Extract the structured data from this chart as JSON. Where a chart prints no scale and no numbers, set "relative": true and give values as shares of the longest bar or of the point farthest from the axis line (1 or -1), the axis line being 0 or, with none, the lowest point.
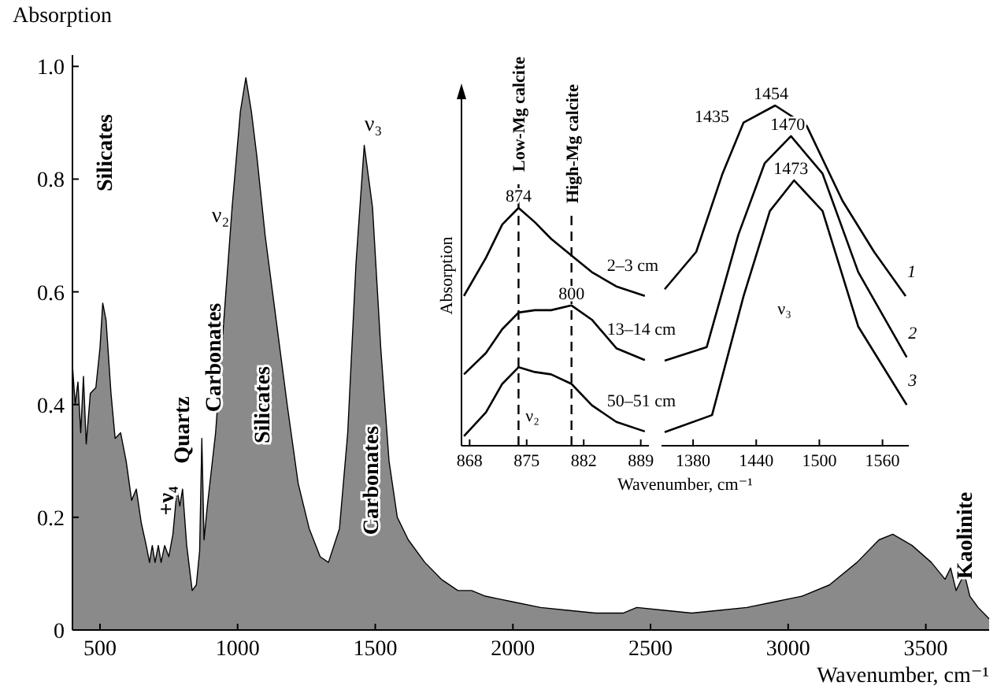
{
  "chart_data": [
    {
      "type": "area",
      "ylabel": "Absorption",
      "xlabel": "Wavenumber, cm⁻¹",
      "xlim": [
        400,
        3730
      ],
      "ylim": [
        0,
        1.02
      ],
      "xticks": [
        500,
        1000,
        1500,
        2000,
        2500,
        3000,
        3500
      ],
      "yticks": [
        0,
        0.2,
        0.4,
        0.6,
        0.8,
        {
          "value": 1,
          "label": "1.0"
        }
      ],
      "x": [
        400,
        410,
        420,
        430,
        440,
        450,
        465,
        485,
        500,
        510,
        522,
        540,
        555,
        575,
        595,
        615,
        632,
        650,
        668,
        680,
        690,
        700,
        712,
        722,
        735,
        750,
        765,
        780,
        790,
        800,
        815,
        835,
        850,
        862,
        870,
        878,
        890,
        920,
        950,
        980,
        1010,
        1030,
        1050,
        1070,
        1100,
        1140,
        1180,
        1220,
        1260,
        1300,
        1330,
        1370,
        1400,
        1430,
        1460,
        1490,
        1520,
        1550,
        1580,
        1620,
        1680,
        1740,
        1800,
        1850,
        1900,
        1950,
        2000,
        2100,
        2200,
        2300,
        2400,
        2450,
        2550,
        2650,
        2750,
        2850,
        2950,
        3050,
        3150,
        3250,
        3330,
        3380,
        3450,
        3520,
        3570,
        3590,
        3610,
        3640,
        3660,
        3690,
        3730
      ],
      "series": [
        {
          "color": "#8a8a8a",
          "values": [
            0.47,
            0.4,
            0.44,
            0.35,
            0.45,
            0.33,
            0.42,
            0.43,
            0.5,
            0.58,
            0.55,
            0.42,
            0.34,
            0.35,
            0.3,
            0.23,
            0.25,
            0.19,
            0.15,
            0.12,
            0.15,
            0.12,
            0.15,
            0.12,
            0.15,
            0.13,
            0.17,
            0.25,
            0.22,
            0.25,
            0.15,
            0.07,
            0.08,
            0.14,
            0.34,
            0.16,
            0.22,
            0.35,
            0.55,
            0.75,
            0.92,
            0.98,
            0.92,
            0.84,
            0.7,
            0.55,
            0.4,
            0.26,
            0.18,
            0.13,
            0.12,
            0.18,
            0.35,
            0.65,
            0.86,
            0.75,
            0.5,
            0.3,
            0.2,
            0.16,
            0.12,
            0.09,
            0.07,
            0.07,
            0.06,
            0.055,
            0.05,
            0.04,
            0.035,
            0.03,
            0.03,
            0.04,
            0.035,
            0.03,
            0.035,
            0.04,
            0.05,
            0.06,
            0.08,
            0.12,
            0.16,
            0.17,
            0.15,
            0.12,
            0.09,
            0.11,
            0.07,
            0.1,
            0.06,
            0.04,
            0.02
          ]
        }
      ],
      "annotations": [
        "Silicates",
        "+ν₄",
        "Quartz",
        "Carbonates",
        "ν₂",
        "Silicates",
        "ν₃",
        "Carbonates",
        "Kaolinite"
      ]
    },
    {
      "type": "line",
      "relative": true,
      "ylabel": "Absorption",
      "xlabel": "Wavenumber, cm⁻¹",
      "xlim": [
        867,
        890
      ],
      "xticks": [
        868,
        875,
        882,
        889
      ],
      "line_style": "solid",
      "x": [
        867.3,
        870,
        872,
        874,
        876,
        878,
        880.5,
        883,
        886,
        889.5
      ],
      "series": [
        {
          "name": "2–3 cm",
          "color": "#000000",
          "values": [
            0.63,
            0.79,
            0.93,
            1.0,
            0.94,
            0.87,
            0.8,
            0.73,
            0.67,
            0.63
          ]
        },
        {
          "name": "13–14 cm",
          "color": "#000000",
          "values": [
            0.3,
            0.39,
            0.49,
            0.56,
            0.57,
            0.57,
            0.59,
            0.53,
            0.41,
            0.36
          ]
        },
        {
          "name": "50–51 cm",
          "color": "#000000",
          "values": [
            0.04,
            0.14,
            0.26,
            0.33,
            0.31,
            0.3,
            0.26,
            0.17,
            0.1,
            0.06
          ]
        }
      ],
      "ref_lines": [
        {
          "axis": "x",
          "value": 874,
          "label": "Low-Mg calcite",
          "line_style": "dashed"
        },
        {
          "axis": "x",
          "value": 880.5,
          "label": "High-Mg calcite",
          "line_style": "dashed"
        }
      ],
      "annotations": [
        {
          "text": "874",
          "x": 874,
          "y": 1.0
        },
        {
          "text": "800",
          "x": 880.5,
          "y": 0.59
        },
        "ν₂"
      ]
    },
    {
      "type": "line",
      "relative": true,
      "xlim": [
        1350,
        1585
      ],
      "xticks": [
        1380,
        1440,
        1500,
        1560
      ],
      "line_style": "solid",
      "series": [
        {
          "name": "1",
          "color": "#000000",
          "x": [
            1353,
            1383,
            1408,
            1428,
            1458,
            1488,
            1522,
            1552,
            1582
          ],
          "values": [
            0.46,
            0.57,
            0.8,
            0.95,
            1.0,
            0.94,
            0.72,
            0.57,
            0.44
          ]
        },
        {
          "name": "2",
          "color": "#000000",
          "x": [
            1353,
            1393,
            1423,
            1448,
            1473,
            1503,
            1537,
            1583
          ],
          "values": [
            0.25,
            0.29,
            0.62,
            0.83,
            0.91,
            0.8,
            0.51,
            0.26
          ]
        },
        {
          "name": "3",
          "color": "#000000",
          "x": [
            1353,
            1398,
            1428,
            1453,
            1476,
            1503,
            1537,
            1583
          ],
          "values": [
            0.04,
            0.09,
            0.44,
            0.69,
            0.78,
            0.69,
            0.35,
            0.12
          ]
        }
      ],
      "annotations": [
        "1435",
        {
          "text": "1454",
          "x": 1454,
          "y": 1.0
        },
        {
          "text": "1470",
          "x": 1470,
          "y": 0.91
        },
        {
          "text": "1473",
          "x": 1473,
          "y": 0.78
        },
        "ν₃"
      ]
    }
  ]
}
